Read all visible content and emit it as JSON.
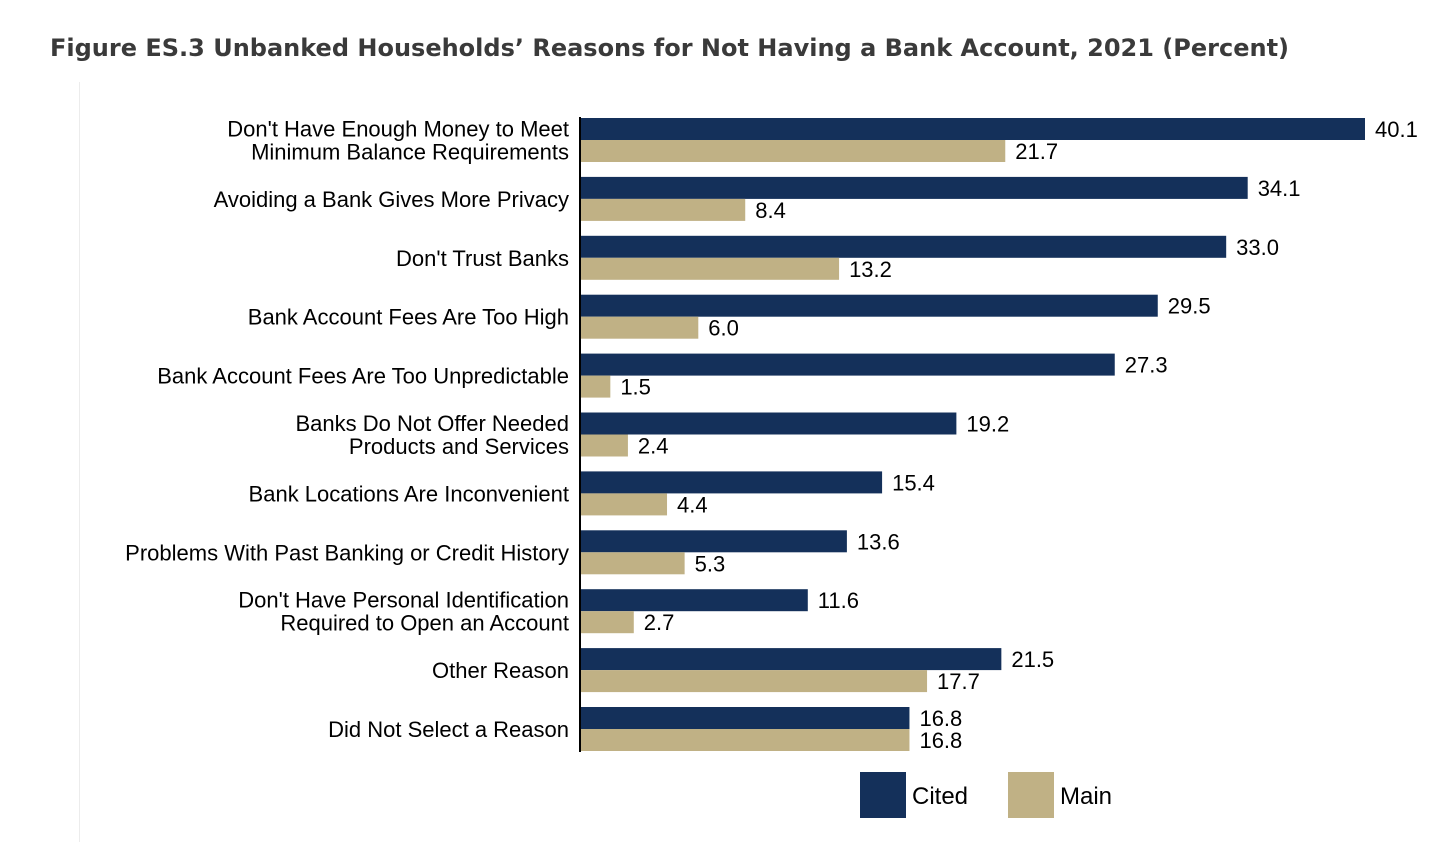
{
  "title": "Figure ES.3 Unbanked Households’ Reasons for Not Having a Bank Account, 2021 (Percent)",
  "colors": {
    "cited": "#14305a",
    "main": "#c0b185"
  },
  "chart_data": {
    "type": "bar",
    "orientation": "horizontal",
    "categories": [
      [
        "Don't Have Enough Money to Meet",
        "Minimum Balance Requirements"
      ],
      [
        "Avoiding a Bank Gives More Privacy"
      ],
      [
        "Don't Trust Banks"
      ],
      [
        "Bank Account Fees Are Too High"
      ],
      [
        "Bank Account Fees Are Too Unpredictable"
      ],
      [
        "Banks Do Not Offer Needed",
        "Products and Services"
      ],
      [
        "Bank Locations Are Inconvenient"
      ],
      [
        "Problems With Past Banking or Credit History"
      ],
      [
        "Don't Have Personal Identification",
        "Required to Open an Account"
      ],
      [
        "Other Reason"
      ],
      [
        "Did Not Select a Reason"
      ]
    ],
    "series": [
      {
        "name": "Cited",
        "values": [
          40.1,
          34.1,
          33.0,
          29.5,
          27.3,
          19.2,
          15.4,
          13.6,
          11.6,
          21.5,
          16.8
        ]
      },
      {
        "name": "Main",
        "values": [
          21.7,
          8.4,
          13.2,
          6.0,
          1.5,
          2.4,
          4.4,
          5.3,
          2.7,
          17.7,
          16.8
        ]
      }
    ],
    "value_labels": {
      "Cited": [
        "40.1",
        "34.1",
        "33.0",
        "29.5",
        "27.3",
        "19.2",
        "15.4",
        "13.6",
        "11.6",
        "21.5",
        "16.8"
      ],
      "Main": [
        "21.7",
        "8.4",
        "13.2",
        "6.0",
        "1.5",
        "2.4",
        "4.4",
        "5.3",
        "2.7",
        "17.7",
        "16.8"
      ]
    },
    "xlim": [
      0,
      40.1
    ],
    "legend": "bottom-right",
    "grid": false
  }
}
